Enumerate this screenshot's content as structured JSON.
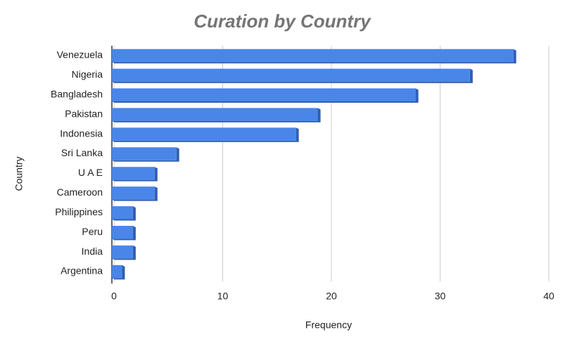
{
  "chart_data": {
    "type": "bar",
    "orientation": "horizontal",
    "title": "Curation by Country",
    "xlabel": "Frequency",
    "ylabel": "Country",
    "categories": [
      "Venezuela",
      "Nigeria",
      "Bangladesh",
      "Pakistan",
      "Indonesia",
      "Sri Lanka",
      "U A E",
      "Cameroon",
      "Philippines",
      "Peru",
      "India",
      "Argentina"
    ],
    "values": [
      37,
      33,
      28,
      19,
      17,
      6,
      4,
      4,
      2,
      2,
      2,
      1
    ],
    "color": "#4a86e8",
    "xlim": [
      0,
      40
    ],
    "xticks": [
      0,
      10,
      20,
      30,
      40
    ],
    "grid": true
  }
}
